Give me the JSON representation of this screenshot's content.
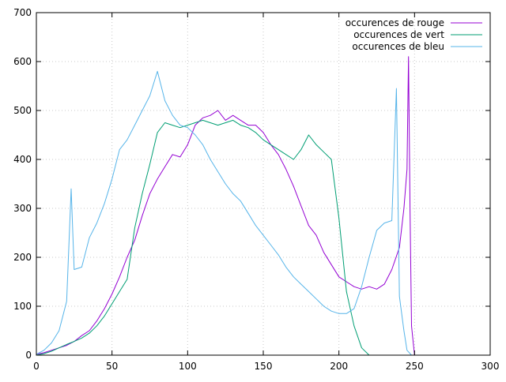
{
  "chart_data": {
    "type": "line",
    "title": "",
    "xlabel": "",
    "ylabel": "",
    "xlim": [
      0,
      300
    ],
    "ylim": [
      0,
      700
    ],
    "xticks": [
      0,
      50,
      100,
      150,
      200,
      250,
      300
    ],
    "yticks": [
      0,
      100,
      200,
      300,
      400,
      500,
      600,
      700
    ],
    "grid": true,
    "legend_position": "top-right",
    "series": [
      {
        "name": "occurences de rouge",
        "color": "#9400d3",
        "points": [
          [
            0,
            2
          ],
          [
            5,
            5
          ],
          [
            10,
            10
          ],
          [
            15,
            15
          ],
          [
            20,
            20
          ],
          [
            25,
            28
          ],
          [
            30,
            40
          ],
          [
            35,
            50
          ],
          [
            40,
            70
          ],
          [
            45,
            95
          ],
          [
            50,
            125
          ],
          [
            55,
            160
          ],
          [
            60,
            200
          ],
          [
            65,
            235
          ],
          [
            70,
            285
          ],
          [
            75,
            330
          ],
          [
            80,
            360
          ],
          [
            85,
            385
          ],
          [
            90,
            410
          ],
          [
            95,
            405
          ],
          [
            100,
            430
          ],
          [
            105,
            470
          ],
          [
            110,
            485
          ],
          [
            115,
            490
          ],
          [
            120,
            500
          ],
          [
            125,
            480
          ],
          [
            130,
            490
          ],
          [
            135,
            480
          ],
          [
            140,
            470
          ],
          [
            145,
            470
          ],
          [
            150,
            455
          ],
          [
            155,
            430
          ],
          [
            160,
            410
          ],
          [
            165,
            380
          ],
          [
            170,
            345
          ],
          [
            175,
            305
          ],
          [
            180,
            265
          ],
          [
            185,
            245
          ],
          [
            190,
            210
          ],
          [
            195,
            185
          ],
          [
            200,
            160
          ],
          [
            205,
            150
          ],
          [
            210,
            140
          ],
          [
            215,
            135
          ],
          [
            220,
            140
          ],
          [
            225,
            135
          ],
          [
            230,
            145
          ],
          [
            235,
            175
          ],
          [
            240,
            220
          ],
          [
            243,
            300
          ],
          [
            245,
            380
          ],
          [
            246,
            610
          ],
          [
            247,
            300
          ],
          [
            248,
            60
          ],
          [
            250,
            0
          ]
        ]
      },
      {
        "name": "occurences de vert",
        "color": "#009e73",
        "points": [
          [
            0,
            0
          ],
          [
            5,
            3
          ],
          [
            10,
            8
          ],
          [
            15,
            15
          ],
          [
            20,
            22
          ],
          [
            25,
            28
          ],
          [
            30,
            35
          ],
          [
            35,
            45
          ],
          [
            40,
            60
          ],
          [
            45,
            80
          ],
          [
            50,
            105
          ],
          [
            55,
            130
          ],
          [
            60,
            155
          ],
          [
            65,
            260
          ],
          [
            70,
            330
          ],
          [
            75,
            390
          ],
          [
            80,
            455
          ],
          [
            85,
            475
          ],
          [
            90,
            470
          ],
          [
            95,
            465
          ],
          [
            100,
            470
          ],
          [
            105,
            475
          ],
          [
            110,
            480
          ],
          [
            115,
            475
          ],
          [
            120,
            470
          ],
          [
            125,
            475
          ],
          [
            130,
            480
          ],
          [
            135,
            470
          ],
          [
            140,
            465
          ],
          [
            145,
            455
          ],
          [
            150,
            440
          ],
          [
            155,
            430
          ],
          [
            160,
            420
          ],
          [
            165,
            410
          ],
          [
            170,
            400
          ],
          [
            175,
            420
          ],
          [
            180,
            450
          ],
          [
            185,
            430
          ],
          [
            190,
            415
          ],
          [
            195,
            400
          ],
          [
            200,
            280
          ],
          [
            205,
            130
          ],
          [
            210,
            60
          ],
          [
            215,
            15
          ],
          [
            220,
            0
          ]
        ]
      },
      {
        "name": "occurences de bleu",
        "color": "#56b4e9",
        "points": [
          [
            0,
            2
          ],
          [
            5,
            10
          ],
          [
            10,
            25
          ],
          [
            15,
            50
          ],
          [
            20,
            110
          ],
          [
            23,
            340
          ],
          [
            25,
            175
          ],
          [
            30,
            180
          ],
          [
            35,
            240
          ],
          [
            40,
            270
          ],
          [
            45,
            310
          ],
          [
            50,
            360
          ],
          [
            55,
            420
          ],
          [
            60,
            440
          ],
          [
            65,
            470
          ],
          [
            70,
            500
          ],
          [
            75,
            530
          ],
          [
            80,
            580
          ],
          [
            85,
            520
          ],
          [
            90,
            490
          ],
          [
            95,
            470
          ],
          [
            100,
            465
          ],
          [
            105,
            450
          ],
          [
            110,
            430
          ],
          [
            115,
            400
          ],
          [
            120,
            375
          ],
          [
            125,
            350
          ],
          [
            130,
            330
          ],
          [
            135,
            315
          ],
          [
            140,
            290
          ],
          [
            145,
            265
          ],
          [
            150,
            245
          ],
          [
            155,
            225
          ],
          [
            160,
            205
          ],
          [
            165,
            180
          ],
          [
            170,
            160
          ],
          [
            175,
            145
          ],
          [
            180,
            130
          ],
          [
            185,
            115
          ],
          [
            190,
            100
          ],
          [
            195,
            90
          ],
          [
            200,
            85
          ],
          [
            205,
            85
          ],
          [
            210,
            95
          ],
          [
            215,
            140
          ],
          [
            220,
            200
          ],
          [
            225,
            255
          ],
          [
            230,
            270
          ],
          [
            235,
            275
          ],
          [
            238,
            545
          ],
          [
            240,
            120
          ],
          [
            243,
            50
          ],
          [
            245,
            10
          ],
          [
            248,
            0
          ]
        ]
      }
    ]
  }
}
